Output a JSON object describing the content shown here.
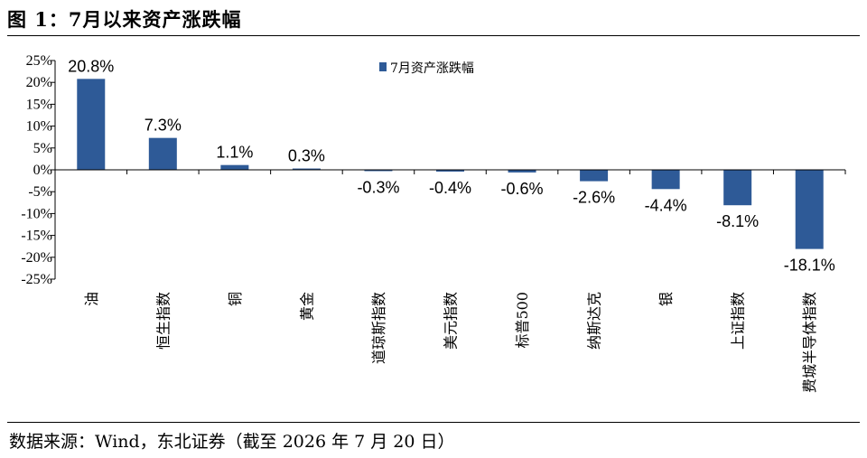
{
  "figure_title": "图 1：7月以来资产涨跌幅",
  "source_note": "数据来源：Wind，东北证券（截至 2026 年 7 月 20 日）",
  "colors": {
    "bar": "#2E5A97",
    "axis": "#000000"
  },
  "chart_data": {
    "type": "bar",
    "categories": [
      "油",
      "恒生指数",
      "铜",
      "黄金",
      "道琼斯指数",
      "美元指数",
      "标普500",
      "纳斯达克",
      "银",
      "上证指数",
      "费城半导体指数"
    ],
    "series": [
      {
        "name": "7月资产涨跌幅",
        "values": [
          20.8,
          7.3,
          1.1,
          0.3,
          -0.3,
          -0.4,
          -0.6,
          -2.6,
          -4.4,
          -8.1,
          -18.1
        ]
      }
    ],
    "data_labels": [
      "20.8%",
      "7.3%",
      "1.1%",
      "0.3%",
      "-0.3%",
      "-0.4%",
      "-0.6%",
      "-2.6%",
      "-4.4%",
      "-8.1%",
      "-18.1%"
    ],
    "ylim": [
      -25,
      25
    ],
    "yticks": [
      25,
      20,
      15,
      10,
      5,
      0,
      -5,
      -10,
      -15,
      -20,
      -25
    ],
    "ytick_labels": [
      "25%",
      "20%",
      "15%",
      "10%",
      "5%",
      "0%",
      "-5%",
      "-10%",
      "-15%",
      "-20%",
      "-25%"
    ],
    "legend": "top-center",
    "grid": false
  }
}
